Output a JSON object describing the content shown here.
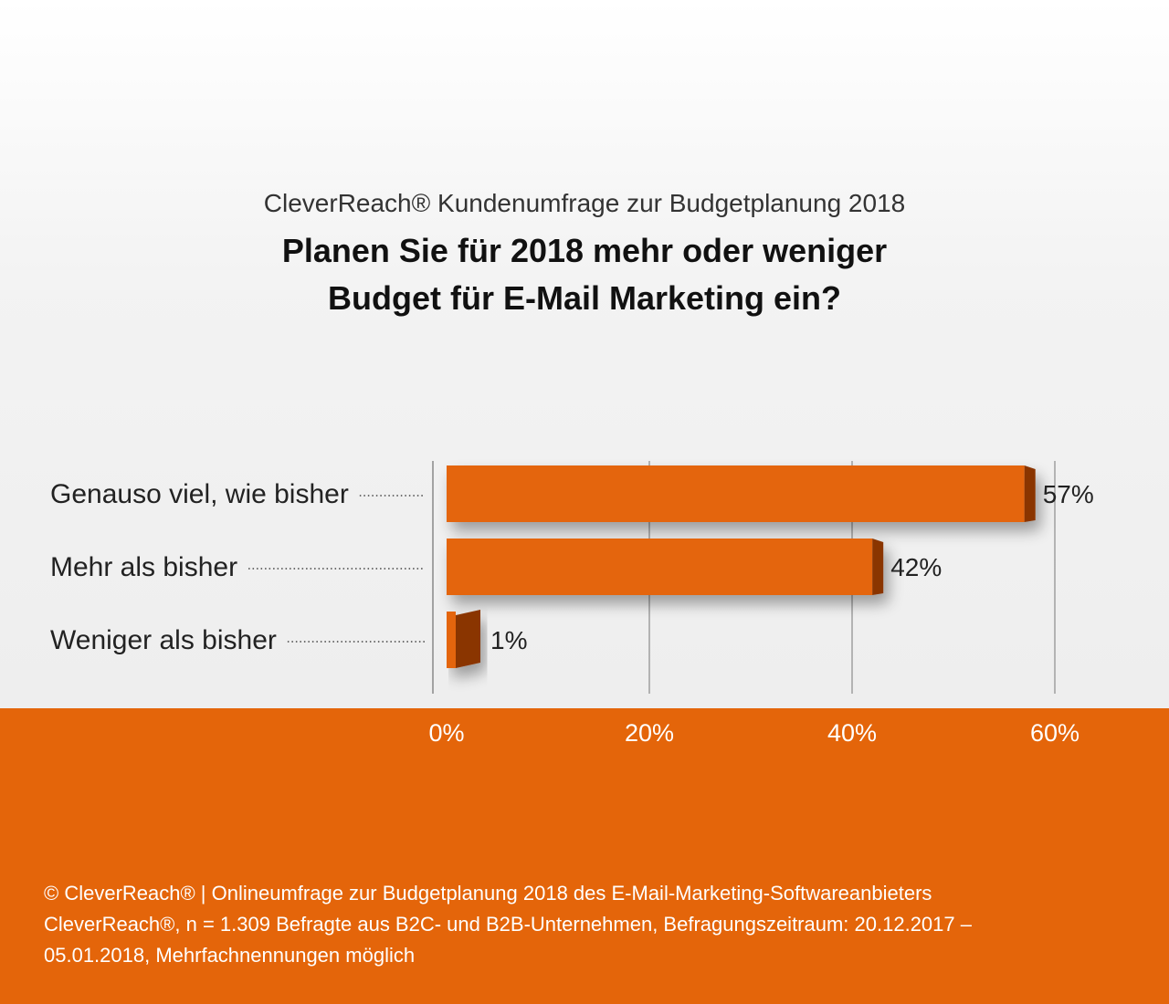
{
  "header": {
    "subtitle": "CleverReach® Kundenumfrage zur Budgetplanung 2018",
    "title_line1": "Planen Sie für 2018 mehr oder weniger",
    "title_line2": "Budget für E-Mail Marketing ein?"
  },
  "chart_data": {
    "type": "bar",
    "orientation": "horizontal",
    "subtitle": "CleverReach® Kundenumfrage zur Budgetplanung 2018",
    "title": "Planen Sie für 2018 mehr oder weniger Budget für E-Mail Marketing ein?",
    "categories": [
      "Genauso viel, wie bisher",
      "Mehr als bisher",
      "Weniger als bisher"
    ],
    "values": [
      57,
      42,
      1
    ],
    "value_labels": [
      "57%",
      "42%",
      "1%"
    ],
    "xlim": [
      0,
      60
    ],
    "ticks": [
      0,
      20,
      40,
      60
    ],
    "tick_labels": [
      "0%",
      "20%",
      "40%",
      "60%"
    ],
    "grid": true,
    "bar_color": "#e4650a"
  },
  "colors": {
    "accent": "#e4650a",
    "bar_side": "#8a3505",
    "text": "#222222"
  },
  "source": {
    "line1": "© CleverReach® | Onlineumfrage zur Budgetplanung 2018 des E-Mail-Marketing-Softwareanbieters",
    "line2": "CleverReach®, n = 1.309 Befragte aus B2C- und B2B-Unternehmen, Befragungszeitraum: 20.12.2017 –",
    "line3": "05.01.2018, Mehrfachnennungen möglich"
  }
}
